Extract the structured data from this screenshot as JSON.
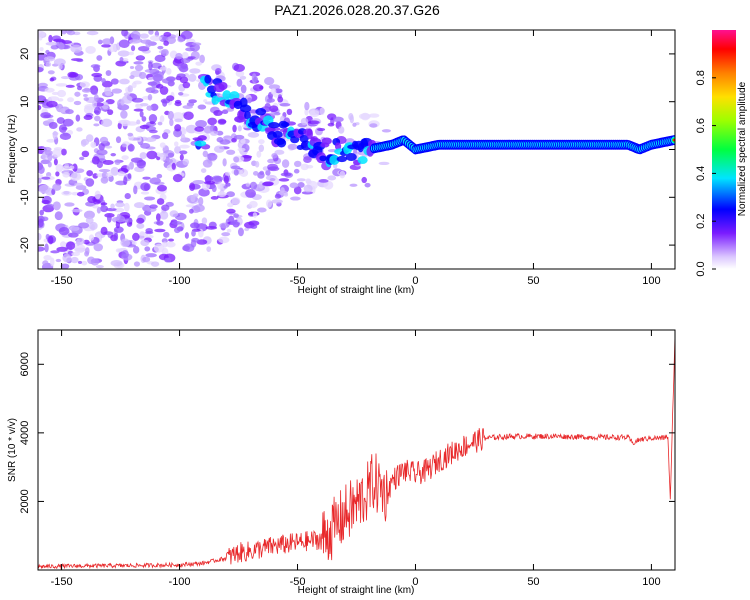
{
  "title": "PAZ1.2026.028.20.37.G26",
  "chart_data": [
    {
      "type": "heatmap",
      "name": "spectrogram",
      "xlabel": "Height of straight line (km)",
      "ylabel": "Frequency (Hz)",
      "xlim": [
        -160,
        110
      ],
      "ylim": [
        -25,
        25
      ],
      "xticks": [
        -150,
        -100,
        -50,
        0,
        50,
        100
      ],
      "yticks": [
        -20,
        -10,
        0,
        10,
        20
      ],
      "colorbar": {
        "label": "Normalized spectral amplitude",
        "range": [
          0,
          1
        ],
        "ticks": [
          0.0,
          0.2,
          0.4,
          0.6,
          0.8
        ],
        "tick_labels": [
          "0.0",
          "0.2",
          "0.4",
          "0.6",
          "0.8"
        ]
      },
      "ridge": {
        "description_points_x": [
          -90,
          -80,
          -70,
          -60,
          -50,
          -40,
          -30,
          -20,
          -10,
          -5,
          0,
          10,
          50,
          90,
          95,
          100,
          110
        ],
        "description_points_y": [
          14,
          11,
          7,
          4,
          2,
          0,
          -1,
          0,
          1,
          2,
          0,
          1,
          1,
          1,
          0,
          1,
          2
        ]
      }
    },
    {
      "type": "line",
      "name": "snr",
      "xlabel": "Height of straight line (km)",
      "ylabel": "SNR (10 * v/v)",
      "xlim": [
        -160,
        110
      ],
      "ylim": [
        0,
        7000
      ],
      "xticks": [
        -150,
        -100,
        -50,
        0,
        50,
        100
      ],
      "yticks": [
        2000,
        4000,
        6000
      ],
      "color": "#e8282a",
      "series": [
        {
          "name": "SNR",
          "x": [
            -160,
            -140,
            -120,
            -100,
            -90,
            -80,
            -75,
            -70,
            -60,
            -50,
            -40,
            -35,
            -30,
            -25,
            -20,
            -18,
            -15,
            -12,
            -10,
            -5,
            0,
            5,
            10,
            15,
            20,
            25,
            30,
            40,
            50,
            60,
            70,
            80,
            90,
            92,
            95,
            100,
            105,
            107,
            108,
            109,
            110
          ],
          "y": [
            100,
            120,
            130,
            150,
            200,
            350,
            500,
            550,
            700,
            800,
            900,
            1200,
            1600,
            1900,
            2300,
            2600,
            2400,
            2200,
            2600,
            2900,
            2800,
            2900,
            3200,
            3400,
            3600,
            3750,
            3850,
            3900,
            3900,
            3900,
            3880,
            3870,
            3870,
            3700,
            3800,
            3850,
            3850,
            3900,
            2000,
            4500,
            6800
          ]
        }
      ]
    }
  ]
}
